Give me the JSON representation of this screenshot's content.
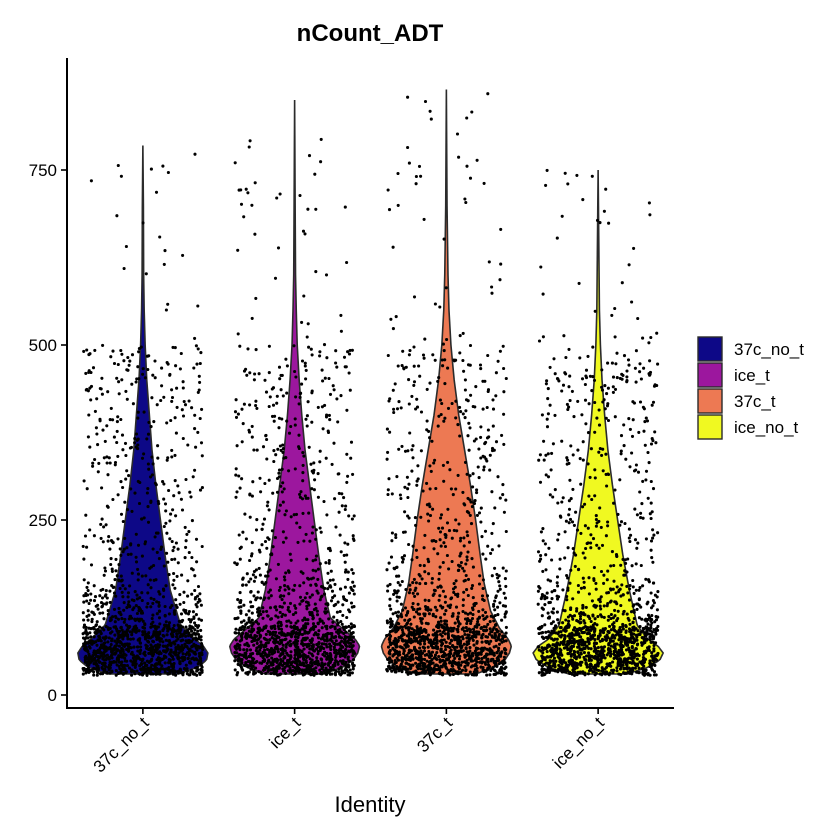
{
  "chart_data": {
    "type": "violin",
    "title": "nCount_ADT",
    "xlabel": "Identity",
    "ylabel": "",
    "categories": [
      "37c_no_t",
      "ice_t",
      "37c_t",
      "ice_no_t"
    ],
    "ylim": [
      -15,
      910
    ],
    "yticks": [
      0,
      250,
      500,
      750
    ],
    "grid": false,
    "legend_position": "right",
    "series": [
      {
        "name": "37c_no_t",
        "color": "#0d0887",
        "max": 785,
        "mode": 60,
        "width_profile": [
          [
            30,
            0.55
          ],
          [
            40,
            0.85
          ],
          [
            50,
            0.98
          ],
          [
            60,
            1.0
          ],
          [
            70,
            0.93
          ],
          [
            80,
            0.8
          ],
          [
            100,
            0.58
          ],
          [
            150,
            0.42
          ],
          [
            200,
            0.34
          ],
          [
            250,
            0.27
          ],
          [
            300,
            0.2
          ],
          [
            350,
            0.14
          ],
          [
            400,
            0.1
          ],
          [
            450,
            0.06
          ],
          [
            500,
            0.035
          ],
          [
            550,
            0.02
          ],
          [
            600,
            0.012
          ],
          [
            700,
            0.008
          ],
          [
            785,
            0.0
          ]
        ]
      },
      {
        "name": "ice_t",
        "color": "#9c179e",
        "max": 850,
        "mode": 70,
        "width_profile": [
          [
            30,
            0.45
          ],
          [
            40,
            0.75
          ],
          [
            50,
            0.9
          ],
          [
            60,
            0.97
          ],
          [
            70,
            1.0
          ],
          [
            80,
            0.93
          ],
          [
            90,
            0.8
          ],
          [
            110,
            0.55
          ],
          [
            150,
            0.45
          ],
          [
            200,
            0.37
          ],
          [
            250,
            0.3
          ],
          [
            300,
            0.23
          ],
          [
            350,
            0.16
          ],
          [
            400,
            0.11
          ],
          [
            450,
            0.07
          ],
          [
            500,
            0.04
          ],
          [
            550,
            0.025
          ],
          [
            600,
            0.014
          ],
          [
            700,
            0.008
          ],
          [
            850,
            0.0
          ]
        ]
      },
      {
        "name": "37c_t",
        "color": "#ed7953",
        "max": 865,
        "mode": 70,
        "width_profile": [
          [
            30,
            0.45
          ],
          [
            40,
            0.75
          ],
          [
            50,
            0.9
          ],
          [
            60,
            0.97
          ],
          [
            70,
            1.0
          ],
          [
            80,
            0.95
          ],
          [
            95,
            0.82
          ],
          [
            120,
            0.68
          ],
          [
            160,
            0.58
          ],
          [
            200,
            0.52
          ],
          [
            250,
            0.45
          ],
          [
            300,
            0.37
          ],
          [
            350,
            0.28
          ],
          [
            400,
            0.19
          ],
          [
            450,
            0.12
          ],
          [
            500,
            0.07
          ],
          [
            550,
            0.04
          ],
          [
            600,
            0.025
          ],
          [
            700,
            0.01
          ],
          [
            865,
            0.0
          ]
        ]
      },
      {
        "name": "ice_no_t",
        "color": "#f0f921",
        "max": 750,
        "mode": 60,
        "width_profile": [
          [
            30,
            0.45
          ],
          [
            40,
            0.78
          ],
          [
            50,
            0.95
          ],
          [
            60,
            1.0
          ],
          [
            70,
            0.92
          ],
          [
            80,
            0.76
          ],
          [
            100,
            0.6
          ],
          [
            150,
            0.48
          ],
          [
            200,
            0.38
          ],
          [
            250,
            0.3
          ],
          [
            300,
            0.22
          ],
          [
            350,
            0.15
          ],
          [
            400,
            0.1
          ],
          [
            450,
            0.06
          ],
          [
            500,
            0.035
          ],
          [
            550,
            0.02
          ],
          [
            650,
            0.01
          ],
          [
            750,
            0.0
          ]
        ]
      }
    ]
  }
}
